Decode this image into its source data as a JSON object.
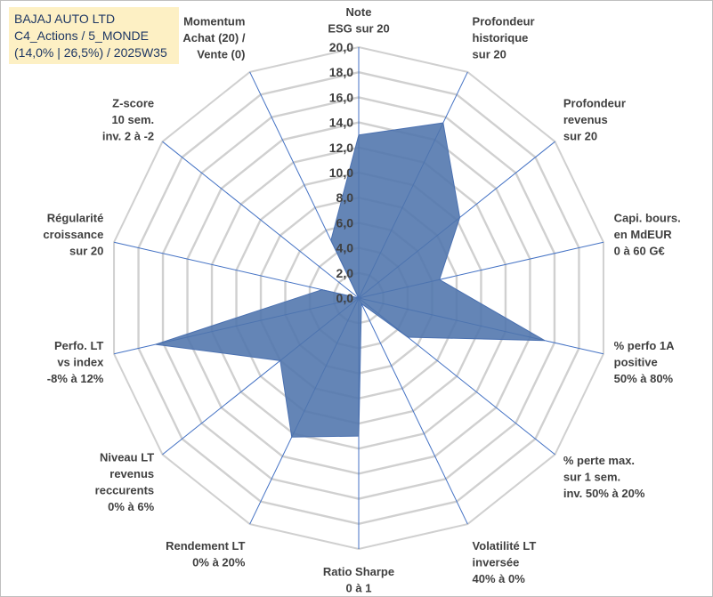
{
  "header": {
    "line1": "BAJAJ AUTO LTD",
    "line2": "C4_Actions / 5_MONDE",
    "line3": "(14,0% | 26,5%) / 2025W35"
  },
  "chart_data": {
    "type": "radar",
    "rmax": 20,
    "ticks": [
      "0,0",
      "2,0",
      "4,0",
      "6,0",
      "8,0",
      "10,0",
      "12,0",
      "14,0",
      "16,0",
      "18,0",
      "20,0"
    ],
    "tick_values": [
      0,
      2,
      4,
      6,
      8,
      10,
      12,
      14,
      16,
      18,
      20
    ],
    "categories": [
      [
        "Note",
        "ESG sur 20"
      ],
      [
        "Profondeur",
        "historique",
        "sur 20"
      ],
      [
        "Profondeur",
        "revenus",
        "sur 20"
      ],
      [
        "Capi. bours.",
        "en MdEUR",
        "0 à 60 G€"
      ],
      [
        "% perfo 1A",
        "positive",
        "50% à 80%"
      ],
      [
        "% perte max.",
        "sur 1 sem.",
        "inv. 50% à 20%"
      ],
      [
        "Volatilité LT",
        "inversée",
        "40% à 0%"
      ],
      [
        "Ratio Sharpe",
        "0 à 1"
      ],
      [
        "Rendement LT",
        "0% à 20%"
      ],
      [
        "Niveau LT",
        "revenus",
        "reccurents",
        "0% à 6%"
      ],
      [
        "Perfo. LT",
        "vs index",
        "-8% à 12%"
      ],
      [
        "Régularité",
        "croissance",
        "sur 20"
      ],
      [
        "Z-score",
        "10 sem.",
        "inv. 2 à -2"
      ],
      [
        "Momentum",
        "Achat (20) /",
        "Vente (0)"
      ]
    ],
    "values": [
      13.0,
      15.5,
      10.3,
      6.6,
      15.2,
      5.0,
      0.5,
      11.0,
      12.3,
      8.0,
      16.6,
      3.0,
      0.0,
      5.1
    ],
    "colors": {
      "fill": "#4f74ac",
      "stroke": "#4a70b0",
      "grid": "#d0d0d0",
      "spoke": "#4472c4"
    }
  }
}
